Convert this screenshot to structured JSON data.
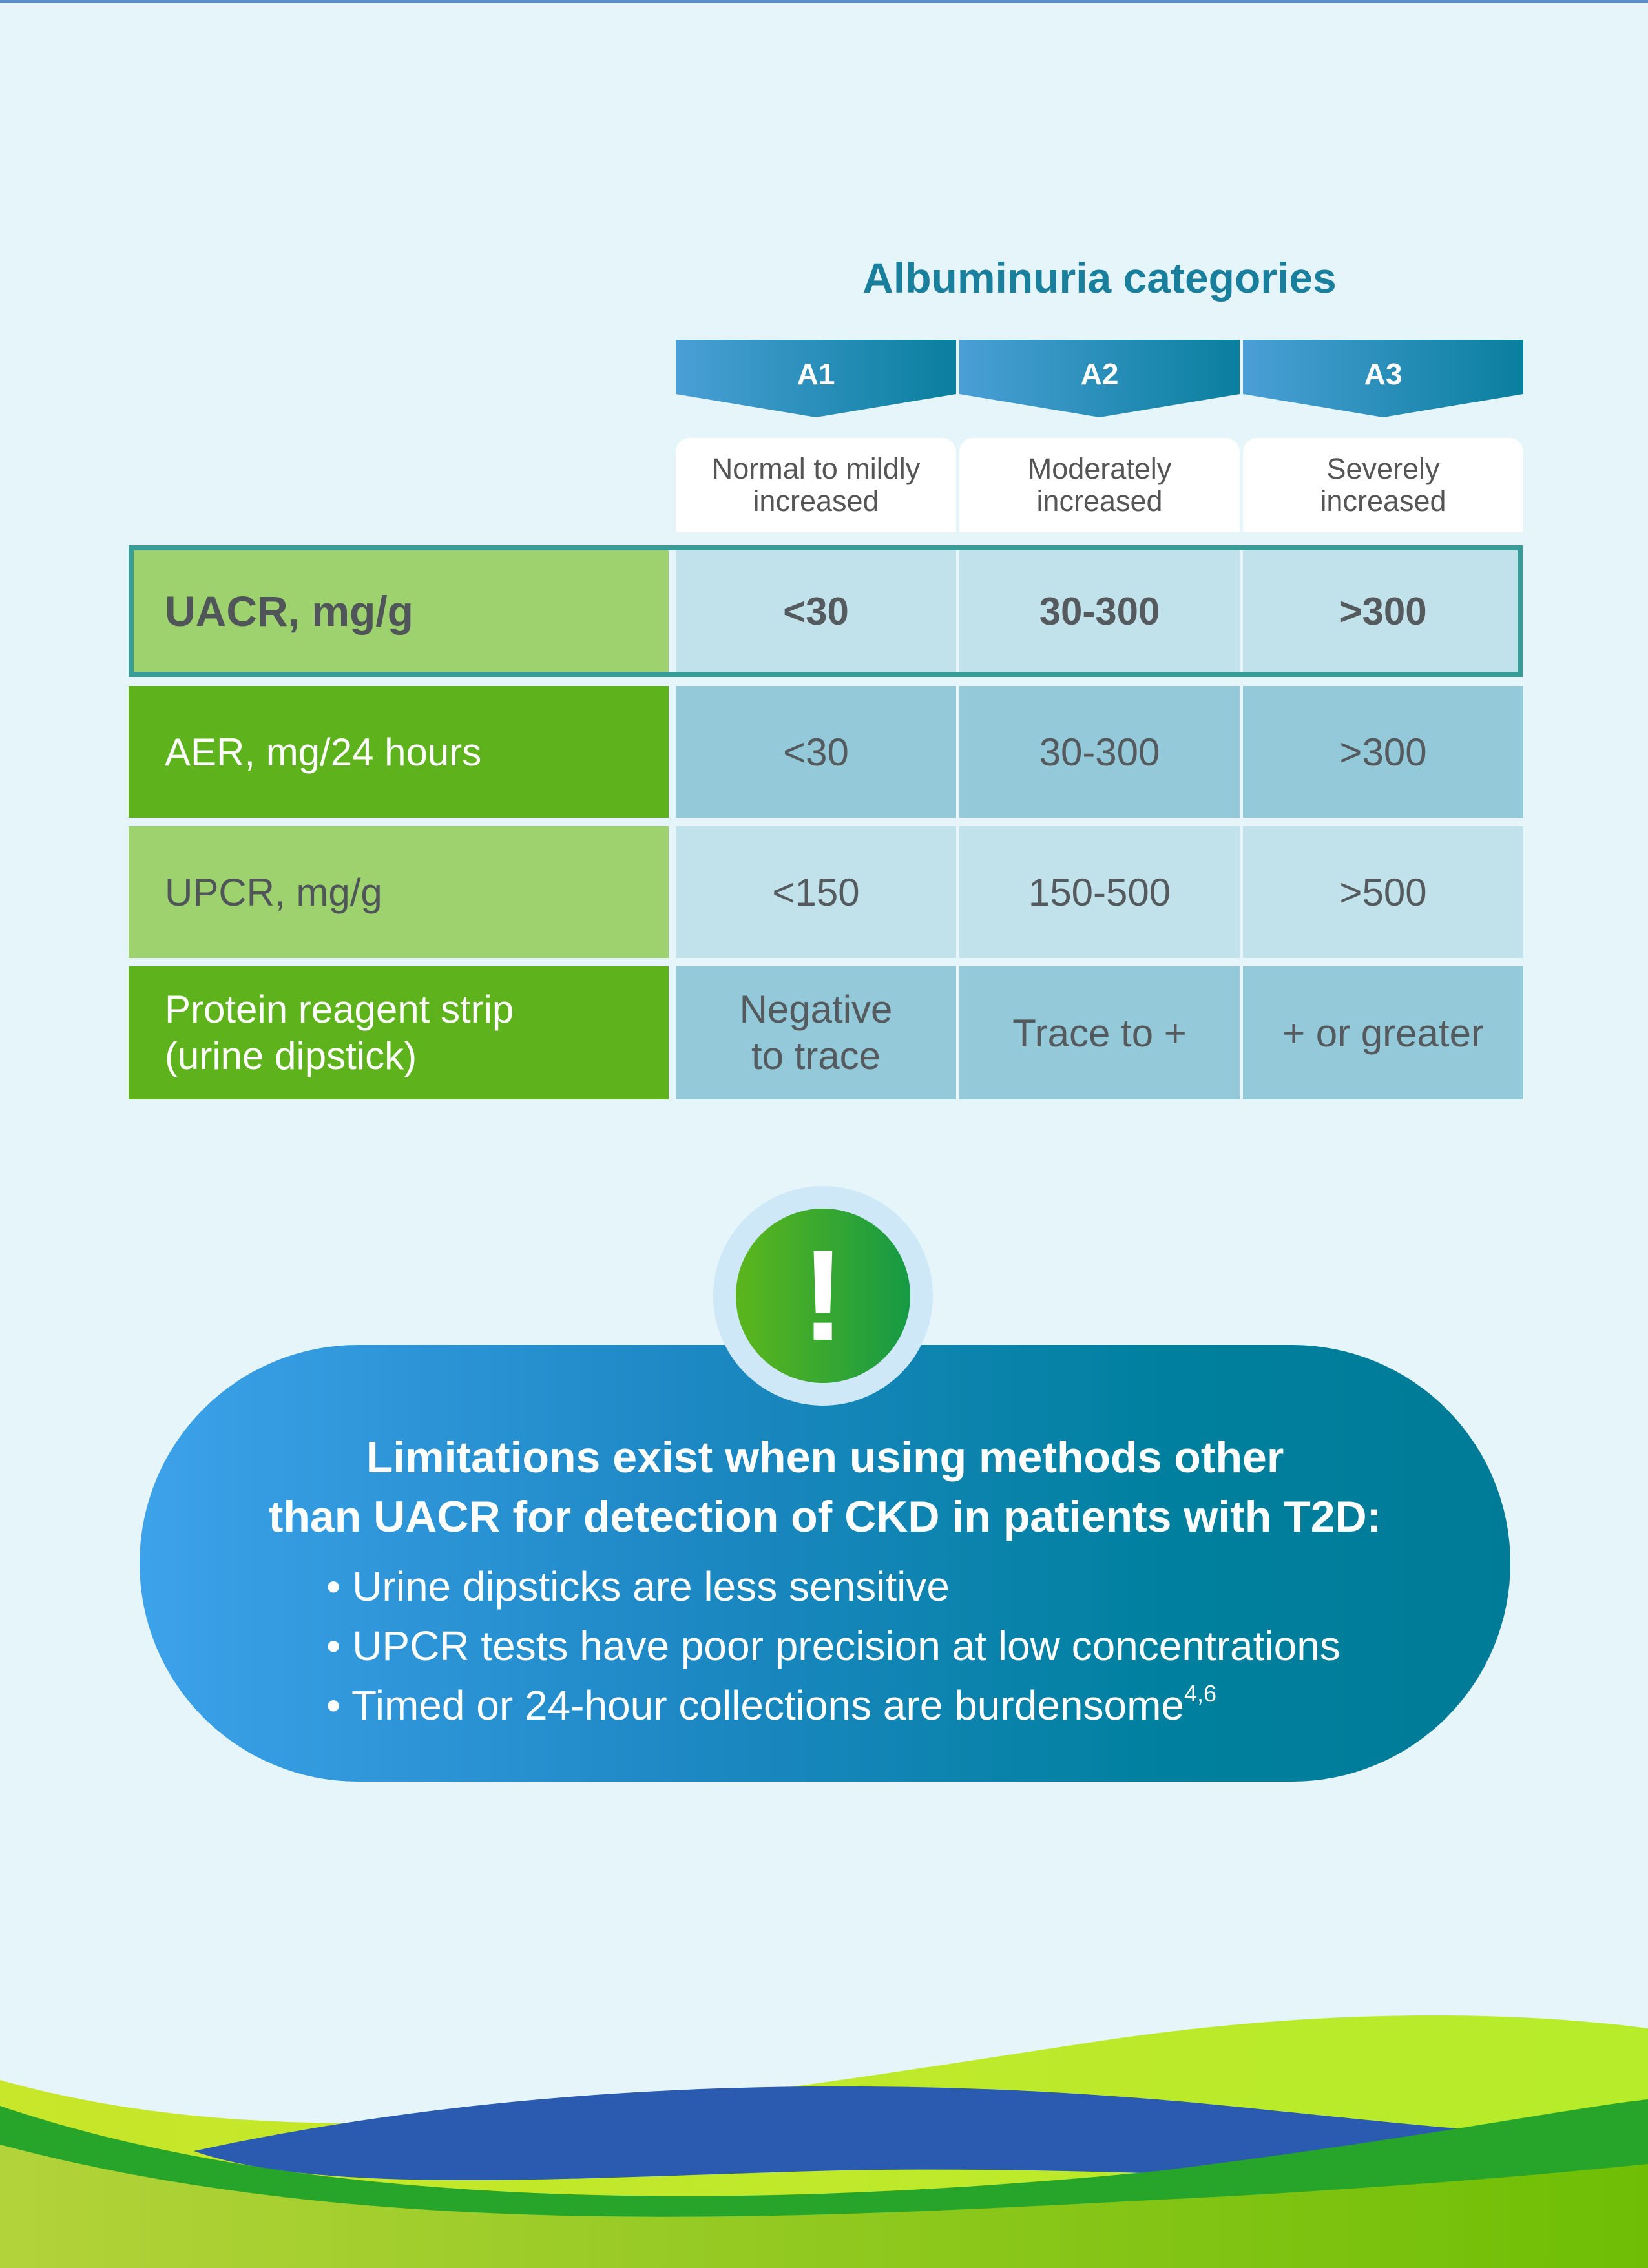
{
  "table": {
    "category_title": "Albuminuria categories",
    "columns": [
      {
        "code": "A1",
        "description": "Normal to mildly increased"
      },
      {
        "code": "A2",
        "description": "Moderately increased"
      },
      {
        "code": "A3",
        "description": "Severely increased"
      }
    ],
    "rows": [
      {
        "label": "UACR, mg/g",
        "values": [
          "<30",
          "30-300",
          ">300"
        ]
      },
      {
        "label": "AER, mg/24 hours",
        "values": [
          "<30",
          "30-300",
          ">300"
        ]
      },
      {
        "label": "UPCR, mg/g",
        "values": [
          "<150",
          "150-500",
          ">500"
        ]
      },
      {
        "label_line1": "Protein reagent strip",
        "label_line2": "(urine dipstick)",
        "values": [
          "Negative to trace",
          "Trace to +",
          "+ or greater"
        ]
      }
    ]
  },
  "callout": {
    "icon": "exclamation-icon",
    "icon_glyph": "!",
    "heading_line1": "Limitations exist when using methods other",
    "heading_line2": "than UACR for detection of CKD in patients with T2D:",
    "bullets": [
      {
        "text": "Urine dipsticks are less sensitive"
      },
      {
        "text": "UPCR tests have poor precision at low concentrations"
      },
      {
        "text": "Timed or 24-hour collections are burdensome",
        "reference": "4,6"
      }
    ],
    "bullet_marker": "•"
  },
  "colors": {
    "title_teal": "#1a7f9c",
    "green_dark": "#5eb21c",
    "green_light": "#9dd26e",
    "blue_dark_cell": "#93c9d8",
    "blue_light_cell": "#c1e2ea",
    "banner_start": "#3da2ea",
    "banner_end": "#007b97",
    "background": "#e6f5fa"
  }
}
